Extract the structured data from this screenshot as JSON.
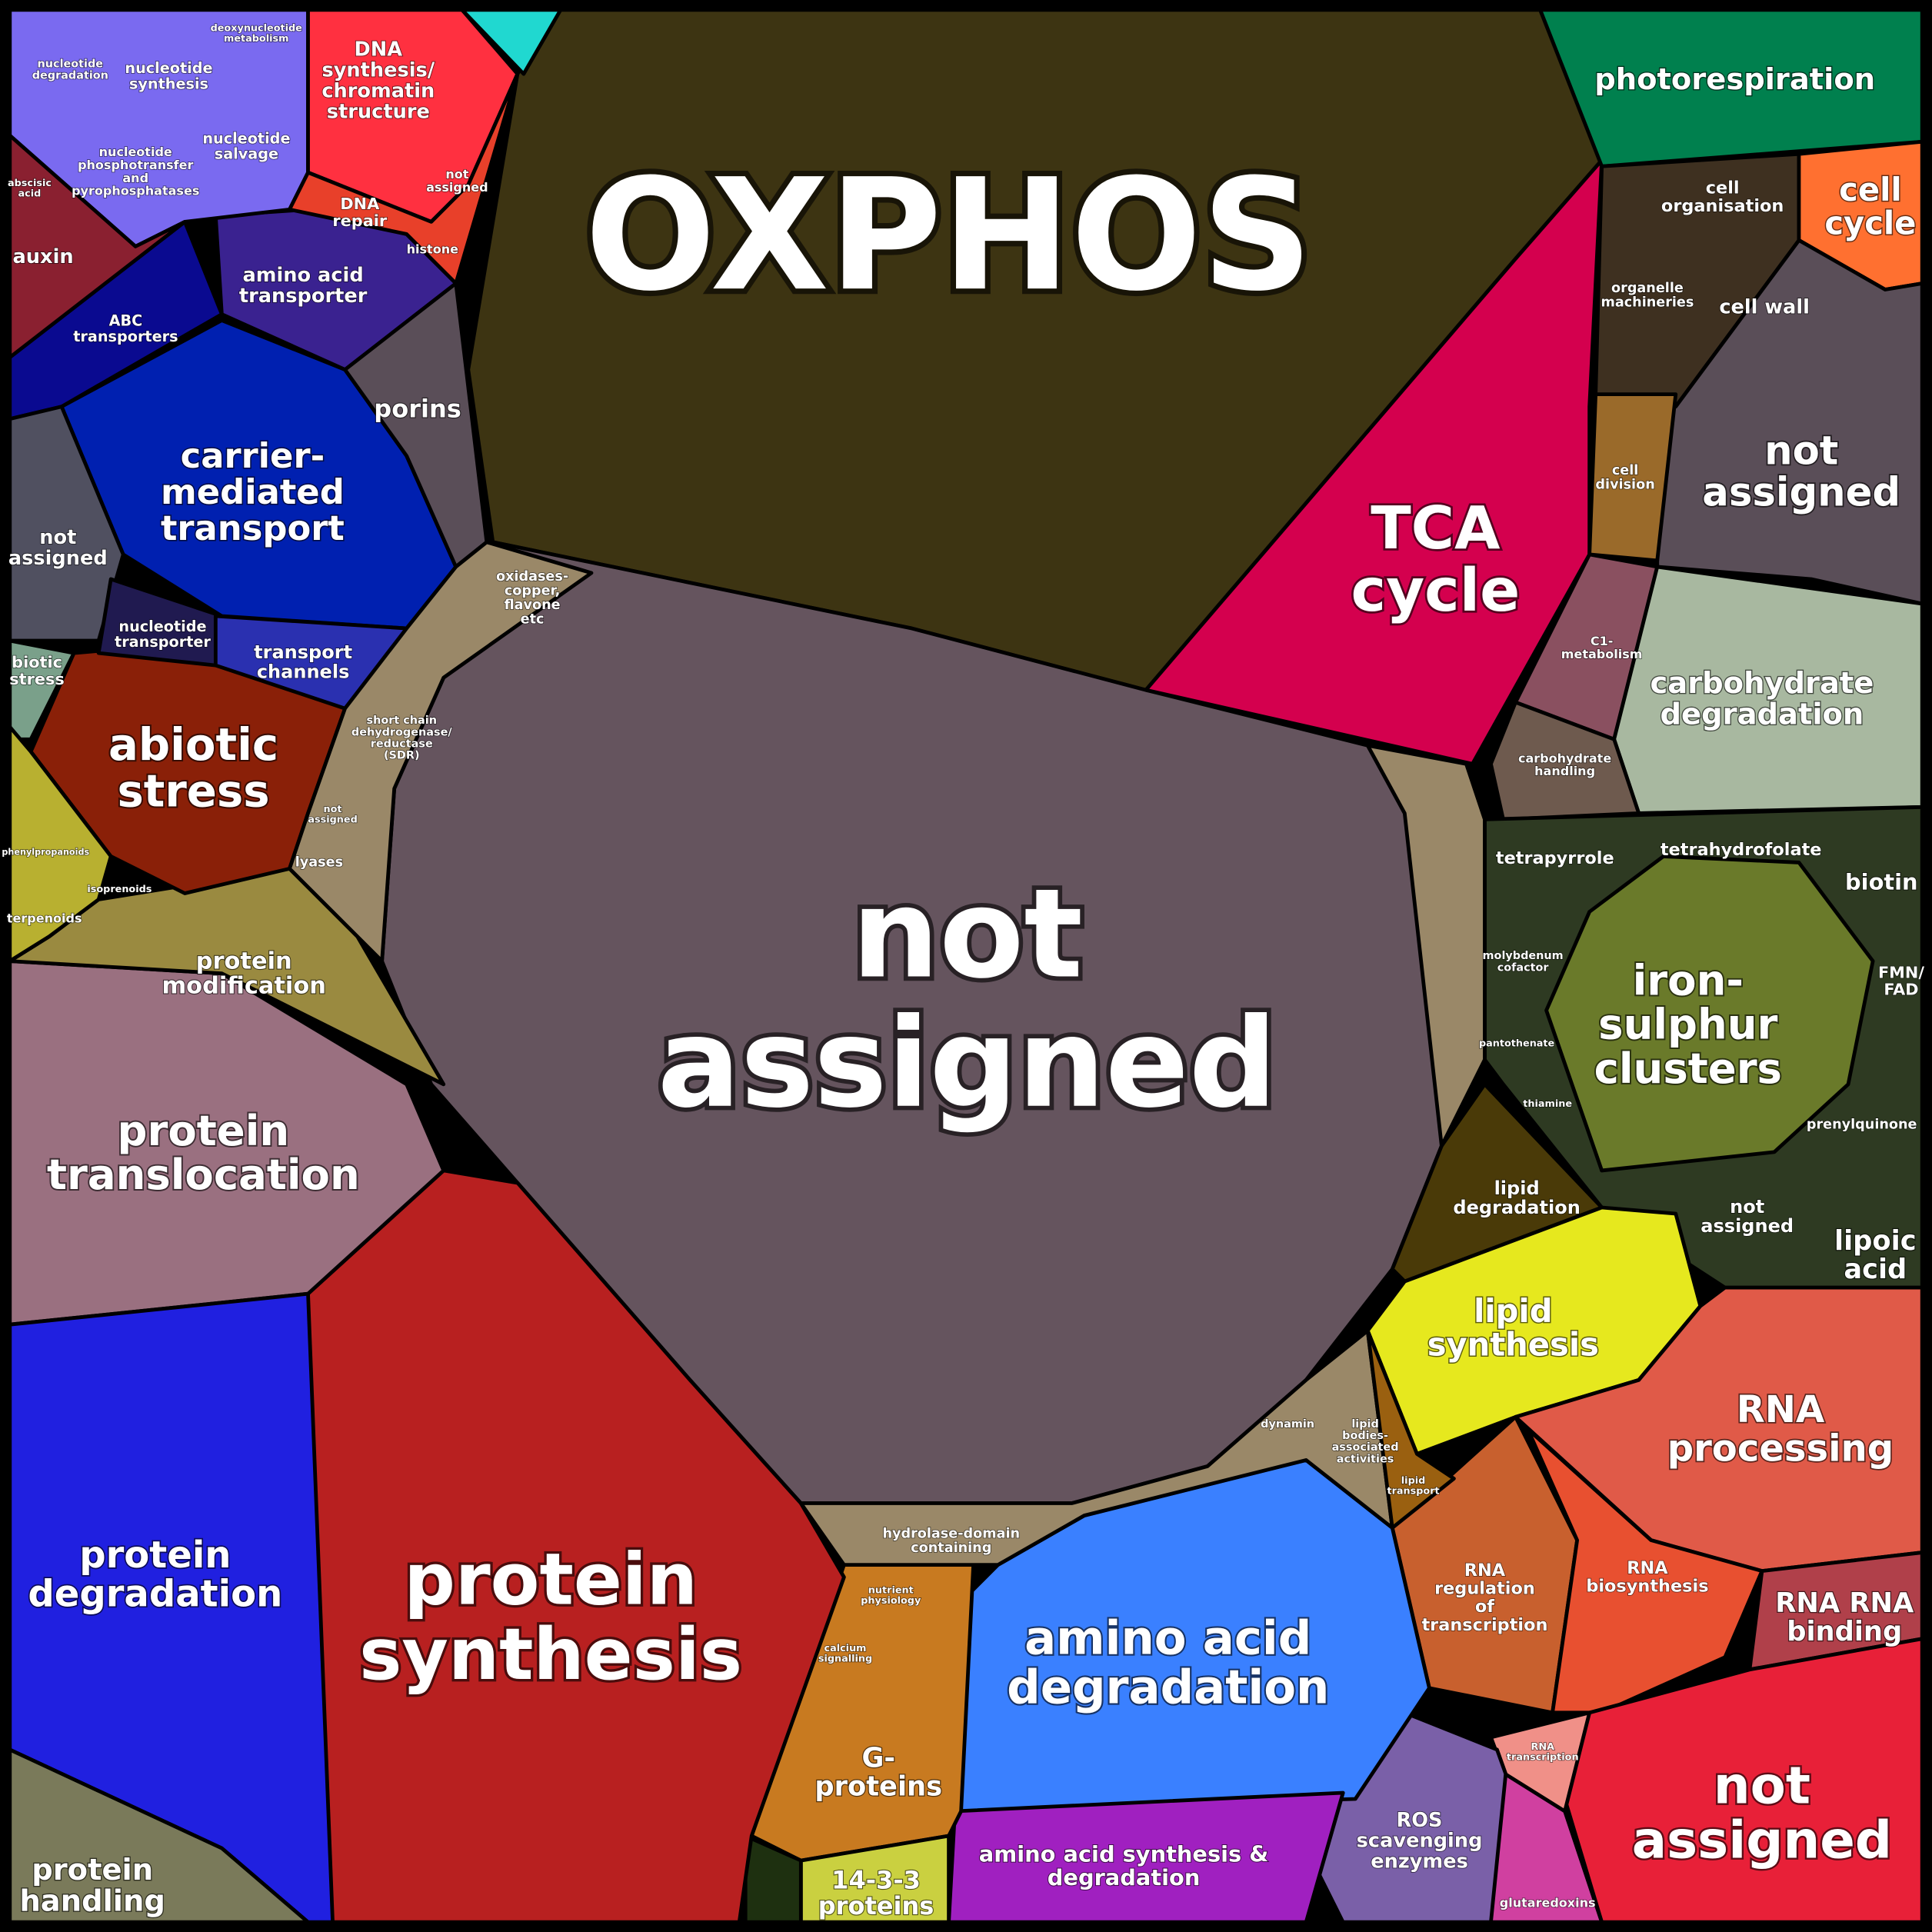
{
  "regions": [
    {
      "labels": [
        [
          "OXPHOS"
        ]
      ]
    },
    {
      "labels": [
        [
          "not",
          "assigned"
        ]
      ]
    },
    {
      "labels": [
        [
          "TCA",
          "cycle"
        ]
      ]
    },
    {
      "labels": [
        [
          "photorespiration"
        ]
      ]
    },
    {
      "labels": [
        [
          "cell",
          "organisation"
        ],
        [
          "organelle",
          "machineries"
        ],
        [
          "cell wall"
        ]
      ]
    },
    {
      "labels": [
        [
          "cell",
          "cycle"
        ]
      ]
    },
    {
      "labels": [
        [
          "not",
          "assigned"
        ]
      ]
    },
    {
      "labels": [
        [
          "cell",
          "division"
        ]
      ]
    },
    {
      "labels": [
        [
          "C1-",
          "metabolism"
        ]
      ]
    },
    {
      "labels": [
        [
          "carbohydrate",
          "degradation"
        ]
      ]
    },
    {
      "labels": [
        [
          "carbohydrate",
          "handling"
        ]
      ]
    },
    {
      "labels": [
        [
          "tetrapyrrole"
        ],
        [
          "tetrahydrofolate"
        ],
        [
          "biotin"
        ],
        [
          "molybdenum",
          "cofactor"
        ],
        [
          "pantothenate"
        ],
        [
          "thiamine"
        ],
        [
          "FMN/",
          "FAD"
        ],
        [
          "prenylquinone"
        ],
        [
          "not",
          "assigned"
        ],
        [
          "lipoic",
          "acid"
        ]
      ]
    },
    {
      "labels": [
        [
          "iron-",
          "sulphur",
          "clusters"
        ]
      ]
    },
    {
      "labels": [
        [
          "lipid",
          "degradation"
        ]
      ]
    },
    {
      "labels": [
        [
          "lipid",
          "synthesis"
        ]
      ]
    },
    {
      "labels": [
        [
          "RNA",
          "processing"
        ]
      ]
    },
    {
      "labels": [
        [
          "RNA",
          "regulation",
          "of",
          "transcription"
        ]
      ]
    },
    {
      "labels": [
        [
          "RNA",
          "biosynthesis"
        ]
      ]
    },
    {
      "labels": [
        [
          "RNA RNA",
          "binding"
        ]
      ]
    },
    {
      "labels": [
        [
          "not",
          "assigned"
        ]
      ]
    },
    {
      "labels": [
        [
          "RNA",
          "transcription"
        ]
      ]
    },
    {
      "labels": [
        [
          "ROS",
          "scavenging",
          "enzymes"
        ]
      ]
    },
    {
      "labels": [
        [
          "glutaredoxins"
        ]
      ]
    },
    {
      "labels": [
        [
          "amino acid",
          "degradation"
        ]
      ]
    },
    {
      "labels": [
        [
          "amino acid synthesis &",
          "degradation"
        ]
      ]
    },
    {
      "labels": [
        [
          "nutrient",
          "physiology"
        ],
        [
          "calcium",
          "signalling"
        ],
        [
          "G-",
          "proteins"
        ]
      ]
    },
    {
      "labels": [
        [
          "14-3-3",
          "proteins"
        ]
      ]
    },
    {
      "labels": [
        [
          "protein",
          "synthesis"
        ]
      ]
    },
    {
      "labels": [
        [
          "protein",
          "translocation"
        ]
      ]
    },
    {
      "labels": [
        [
          "protein",
          "degradation"
        ]
      ]
    },
    {
      "labels": [
        [
          "protein",
          "handling"
        ]
      ]
    },
    {
      "labels": [
        [
          "protein",
          "modification"
        ]
      ]
    },
    {
      "labels": [
        [
          "abiotic",
          "stress"
        ]
      ]
    },
    {
      "labels": [
        [
          "carrier-",
          "mediated",
          "transport"
        ]
      ]
    },
    {
      "labels": [
        [
          "ABC",
          "transporters"
        ]
      ]
    },
    {
      "labels": [
        [
          "amino acid",
          "transporter"
        ]
      ]
    },
    {
      "labels": [
        [
          "porins"
        ]
      ]
    },
    {
      "labels": [
        [
          "nucleotide",
          "degradation"
        ],
        [
          "nucleotide",
          "synthesis"
        ],
        [
          "deoxynucleotide",
          "metabolism"
        ],
        [
          "nucleotide",
          "salvage"
        ],
        [
          "nucleotide",
          "phosphotransfer",
          "and",
          "pyrophosphatases"
        ]
      ]
    },
    {
      "labels": [
        [
          "DNA",
          "synthesis/",
          "chromatin",
          "structure"
        ]
      ]
    },
    {
      "labels": [
        [
          "DNA",
          "repair"
        ],
        [
          "histone"
        ],
        [
          "not",
          "assigned"
        ]
      ]
    },
    {
      "labels": [
        [
          "not",
          "assigned"
        ]
      ]
    },
    {
      "labels": [
        [
          "nucleotide",
          "transporter"
        ]
      ]
    },
    {
      "labels": [
        [
          "transport",
          "channels"
        ]
      ]
    },
    {
      "labels": [
        [
          "biotic",
          "stress"
        ]
      ]
    },
    {
      "labels": [
        [
          "auxin"
        ],
        [
          "abscisic",
          "acid"
        ]
      ]
    },
    {
      "labels": [
        [
          "phenylpropanoids"
        ],
        [
          "isoprenoids"
        ],
        [
          "terpenoids"
        ]
      ]
    },
    {
      "labels": [
        [
          "oxidases-",
          "copper,",
          "flavone",
          "etc"
        ],
        [
          "short chain",
          "dehydrogenase/",
          "reductase",
          "(SDR)"
        ],
        [
          "lyases"
        ],
        [
          "not",
          "assigned"
        ]
      ]
    },
    {
      "labels": [
        [
          "hydrolase-domain",
          "containing"
        ],
        [
          "dynamin"
        ]
      ]
    },
    {
      "labels": [
        [
          "lipid",
          "bodies-",
          "associated",
          "activities"
        ],
        [
          "lipid",
          "transport"
        ]
      ]
    }
  ]
}
